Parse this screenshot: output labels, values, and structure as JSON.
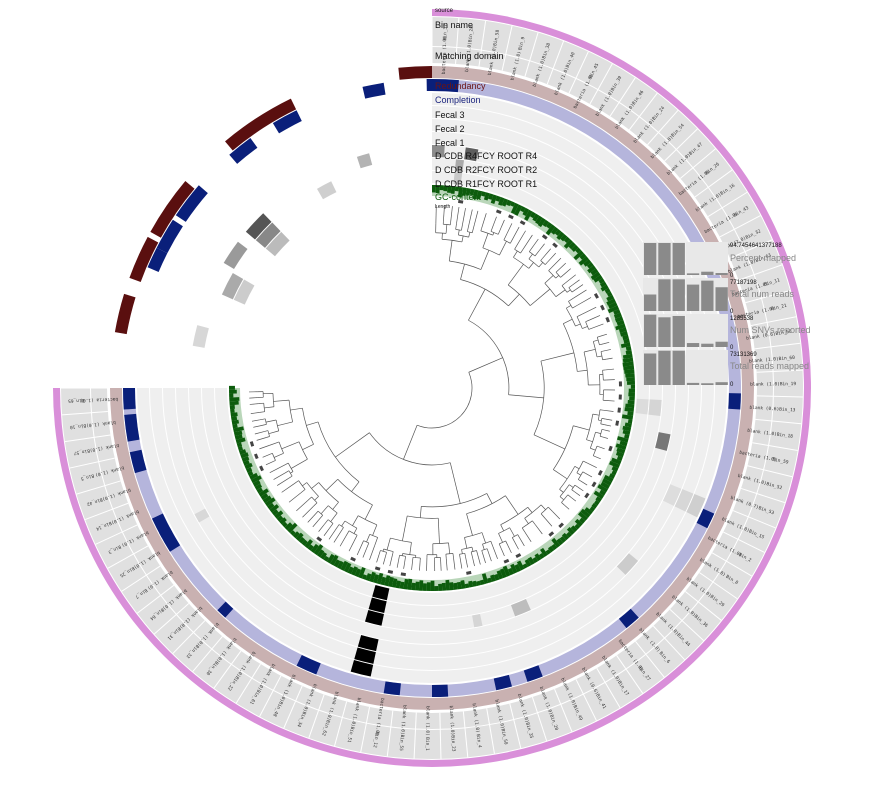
{
  "layers": {
    "source": "source",
    "bin_name": "Bin name",
    "matching_domain": "Matching domain",
    "redundancy": "Redundancy",
    "completion": "Completion",
    "fecal3": "Fecal 3",
    "fecal2": "Fecal 2",
    "fecal1": "Fecal 1",
    "r4": "D CDB R4FCY ROOT R4",
    "r2": "D CDB R2FCY ROOT R2",
    "r1": "D CDB R1FCY ROOT R1",
    "gc": "GC-content",
    "length": "Length"
  },
  "colors": {
    "source_ring": "#d98fd9",
    "label_ring": "#e0e0e0",
    "redundancy_bg": "#c9b1b1",
    "redundancy_fg": "#5a0f0f",
    "completion_bg": "#b5b5dc",
    "completion_fg": "#0a1f7a",
    "heat_bg": "#efefef",
    "gc_bg": "#b9d6b9",
    "gc_fg": "#0d5c0d",
    "tree": "#555555",
    "bar_bg": "#e8e8e8",
    "bar_fg": "#8a8a8a"
  },
  "bin_labels": [
    "Bin_37",
    "Bin_28",
    "Bin_58",
    "Bin_9",
    "Bin_38",
    "Bin_40",
    "Bin_45",
    "Bin_39",
    "Bin_46",
    "Bin_24",
    "Bin_54",
    "Bin_47",
    "Bin_26",
    "Bin_16",
    "Bin_43",
    "Bin_32",
    "Bin_63",
    "Bin_11",
    "Bin_21",
    "Bin_56",
    "Bin_60",
    "Bin_19",
    "Bin_13",
    "Bin_18",
    "Bin_59",
    "Bin_52",
    "Bin_53",
    "Bin_15",
    "Bin_2",
    "Bin_8",
    "Bin_29",
    "Bin_36",
    "Bin_44",
    "Bin_6",
    "Bin_27",
    "Bin_17",
    "Bin_41",
    "Bin_49",
    "Bin_20",
    "Bin_35",
    "Bin_50",
    "Bin_4",
    "Bin_23",
    "Bin_1",
    "Bin_55",
    "Bin_12",
    "Bin_51",
    "Bin_62",
    "Bin_34",
    "Bin_48",
    "Bin_61",
    "Bin_22",
    "Bin_30",
    "Bin_33",
    "Bin_31",
    "Bin_64",
    "Bin_7",
    "Bin_25",
    "Bin_3",
    "Bin_14",
    "Bin_42",
    "Bin_5",
    "Bin_57",
    "Bin_10",
    "Bin_65"
  ],
  "domain_labels": [
    "bacteria (1.0)",
    "blank (1.0)",
    "blank (1.0)",
    "blank (1.0)",
    "blank (1.0)",
    "blank (1.0)",
    "bacteria (1.0)",
    "blank (1.0)",
    "blank (1.0)",
    "blank (1.0)",
    "blank (1.0)",
    "blank (1.0)",
    "bacteria (1.0)",
    "blank (1.0)",
    "bacteria (1.0)",
    "blank (2.0)",
    "blank (1.0)",
    "bacteria (1.0)",
    "bacteria (1.0)",
    "blank (0.6)",
    "blank (1.0)",
    "blank (1.0)",
    "blank (0.6)",
    "blank (1.0)",
    "bacteria (1.0)",
    "blank (1.0)",
    "blank (0.7)",
    "blank (1.0)",
    "bacteria (1.0)",
    "blank (1.0)",
    "blank (1.0)",
    "blank (1.0)",
    "blank (1.0)",
    "blank (1.0)",
    "bacteria (1.0)",
    "blank (1.0)",
    "blank (0.6)",
    "blank (1.0)",
    "blank (1.0)",
    "blank (1.0)",
    "blank (1.0)",
    "blank (1.0)",
    "blank (1.0)",
    "blank (1.0)",
    "blank (1.0)",
    "bacteria (1.0)",
    "blank (1.0)",
    "blank (1.0)",
    "blank (1.0)",
    "blank (1.0)",
    "blank (1.0)",
    "blank (1.0)",
    "blank (1.0)",
    "blank (1.0)",
    "blank (1.0)",
    "blank (1.0)",
    "blank (1.0)",
    "blank (1.0)",
    "blank (1.0)",
    "blank (1.0)",
    "blank (1.0)",
    "blank (1.0)",
    "blank (1.0)",
    "blank (1.0)",
    "bacteria (1.0)"
  ],
  "bars": [
    {
      "max": "94.7454641377188",
      "min": "0",
      "title": "Percent mapped",
      "levels": [
        0.97,
        0.97,
        0.97,
        0.05,
        0.1,
        0.06
      ]
    },
    {
      "max": "77187198",
      "min": "0",
      "title": "Total num reads",
      "levels": [
        0.5,
        0.96,
        0.96,
        0.8,
        0.92,
        0.72
      ]
    },
    {
      "max": "1285538",
      "min": "0",
      "title": "Num SNVs reported",
      "levels": [
        0.98,
        0.9,
        0.94,
        0.12,
        0.1,
        0.16
      ]
    },
    {
      "max": "73131369",
      "min": "0",
      "title": "Total reads mapped",
      "levels": [
        0.9,
        0.98,
        0.98,
        0.06,
        0.05,
        0.08
      ]
    }
  ]
}
